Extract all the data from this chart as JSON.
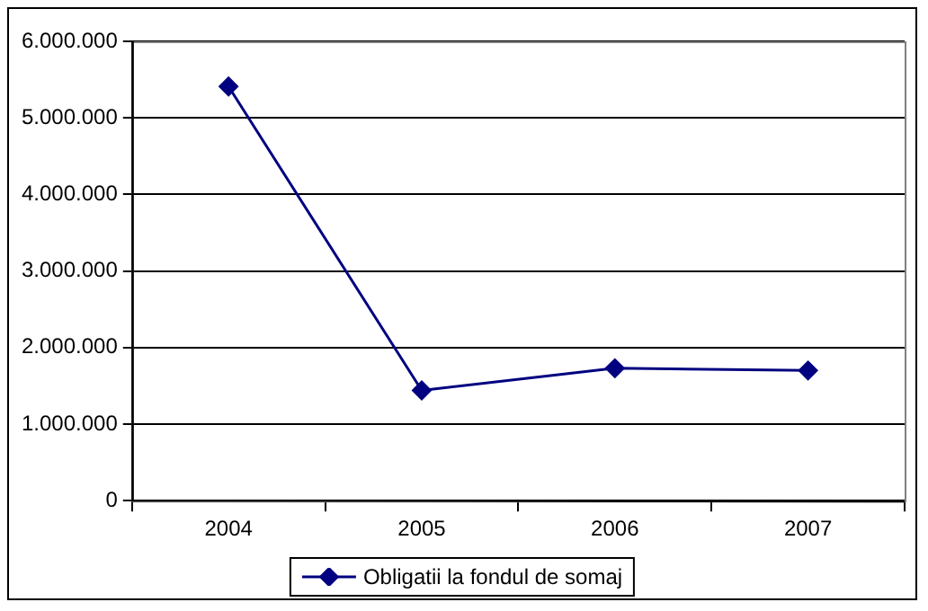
{
  "chart_data": {
    "type": "line",
    "categories": [
      "2004",
      "2005",
      "2006",
      "2007"
    ],
    "series": [
      {
        "name": "Obligatii la fondul de somaj",
        "color": "#000080",
        "values": [
          5410000,
          1440000,
          1730000,
          1700000
        ]
      }
    ],
    "ylim": [
      0,
      6000000
    ],
    "yticks": [
      0,
      {
        "value": 1000000,
        "label": "1.000.000"
      },
      {
        "value": 2000000,
        "label": "2.000.000"
      },
      {
        "value": 3000000,
        "label": "3.000.000"
      },
      {
        "value": 4000000,
        "label": "4.000.000"
      },
      {
        "value": 5000000,
        "label": "5.000.000"
      },
      {
        "value": 6000000,
        "label": "6.000.000"
      }
    ],
    "grid": "y",
    "legend": "bottom",
    "marker": "diamond",
    "line_style": "solid"
  }
}
